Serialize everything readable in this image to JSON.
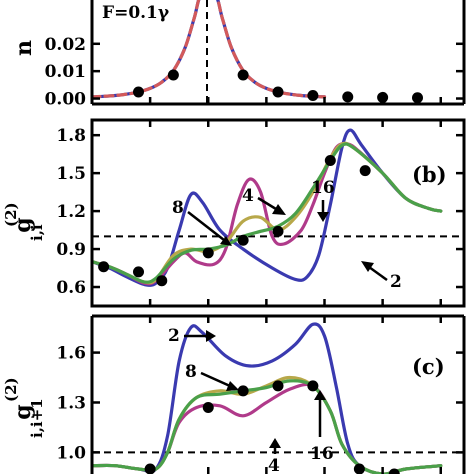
{
  "chart_data": [
    {
      "panel": "a",
      "type": "line",
      "ylabel": "n",
      "annotation": "F=0.1γ",
      "ylim": [
        -0.002,
        0.036
      ],
      "yticks": [
        "0.00",
        "0.01",
        "0.02"
      ],
      "ytick_values": [
        0.0,
        0.01,
        0.02
      ],
      "reference_line": {
        "orientation": "vertical",
        "style": "dashed"
      },
      "series": [
        {
          "color": "#3a3ab0",
          "style": "solid",
          "values": [
            [
              -1.0,
              0.0006
            ],
            [
              -0.9,
              0.0008
            ],
            [
              -0.8,
              0.0011
            ],
            [
              -0.7,
              0.0016
            ],
            [
              -0.6,
              0.0024
            ],
            [
              -0.5,
              0.0037
            ],
            [
              -0.4,
              0.006
            ],
            [
              -0.3,
              0.0102
            ],
            [
              -0.2,
              0.0185
            ],
            [
              -0.12,
              0.0295
            ],
            [
              -0.06,
              0.038
            ],
            [
              0.06,
              0.038
            ],
            [
              0.12,
              0.0295
            ],
            [
              0.2,
              0.0185
            ],
            [
              0.3,
              0.0102
            ],
            [
              0.4,
              0.006
            ],
            [
              0.5,
              0.0037
            ],
            [
              0.6,
              0.0024
            ],
            [
              0.7,
              0.0016
            ],
            [
              0.8,
              0.0011
            ],
            [
              0.9,
              0.0008
            ],
            [
              1.0,
              0.0006
            ]
          ]
        },
        {
          "color": "#d35a5a",
          "style": "dashed",
          "values": [
            [
              -1.0,
              0.0006
            ],
            [
              -0.9,
              0.0008
            ],
            [
              -0.8,
              0.0011
            ],
            [
              -0.7,
              0.0016
            ],
            [
              -0.6,
              0.0024
            ],
            [
              -0.5,
              0.0037
            ],
            [
              -0.4,
              0.006
            ],
            [
              -0.3,
              0.0102
            ],
            [
              -0.2,
              0.0185
            ],
            [
              -0.12,
              0.0295
            ],
            [
              -0.06,
              0.038
            ],
            [
              0.06,
              0.038
            ],
            [
              0.12,
              0.0295
            ],
            [
              0.2,
              0.0185
            ],
            [
              0.3,
              0.0102
            ],
            [
              0.4,
              0.006
            ],
            [
              0.5,
              0.0037
            ],
            [
              0.6,
              0.0024
            ],
            [
              0.7,
              0.0016
            ],
            [
              0.8,
              0.0011
            ],
            [
              0.9,
              0.0008
            ],
            [
              1.0,
              0.0006
            ]
          ]
        },
        {
          "color": "#000000",
          "style": "markers",
          "values": [
            [
              -0.6,
              0.0024
            ],
            [
              -0.3,
              0.0086
            ],
            [
              0.3,
              0.0086
            ],
            [
              0.6,
              0.0024
            ],
            [
              0.9,
              0.0011
            ],
            [
              1.2,
              0.0006
            ],
            [
              1.5,
              0.0004
            ],
            [
              1.8,
              0.0003
            ]
          ]
        }
      ]
    },
    {
      "panel": "b",
      "type": "line",
      "panel_label": "(b)",
      "ylabel": "g",
      "ylabel_subscript": "i,i",
      "ylabel_superscript": "(2)",
      "ylim": [
        0.45,
        1.92
      ],
      "yticks": [
        "0.6",
        "0.9",
        "1.2",
        "1.5",
        "1.8"
      ],
      "ytick_values": [
        0.6,
        0.9,
        1.2,
        1.5,
        1.8
      ],
      "reference_line": {
        "orientation": "horizontal",
        "style": "dashed",
        "y": 1.0
      },
      "curve_labels": [
        "2",
        "4",
        "8",
        "16"
      ],
      "series": [
        {
          "name": "2",
          "color": "#3a3ab0",
          "values": [
            [
              -1.0,
              0.8
            ],
            [
              -0.85,
              0.75
            ],
            [
              -0.7,
              0.68
            ],
            [
              -0.55,
              0.62
            ],
            [
              -0.45,
              0.63
            ],
            [
              -0.35,
              0.75
            ],
            [
              -0.25,
              1.05
            ],
            [
              -0.15,
              1.33
            ],
            [
              -0.05,
              1.27
            ],
            [
              0.1,
              1.05
            ],
            [
              0.3,
              0.9
            ],
            [
              0.55,
              0.75
            ],
            [
              0.75,
              0.66
            ],
            [
              0.85,
              0.68
            ],
            [
              0.95,
              0.85
            ],
            [
              1.05,
              1.25
            ],
            [
              1.15,
              1.7
            ],
            [
              1.22,
              1.84
            ],
            [
              1.32,
              1.72
            ],
            [
              1.5,
              1.5
            ],
            [
              1.7,
              1.3
            ],
            [
              1.9,
              1.22
            ],
            [
              2.0,
              1.2
            ]
          ]
        },
        {
          "name": "4",
          "color": "#b03a8a",
          "values": [
            [
              -1.0,
              0.8
            ],
            [
              -0.85,
              0.76
            ],
            [
              -0.7,
              0.7
            ],
            [
              -0.55,
              0.63
            ],
            [
              -0.45,
              0.65
            ],
            [
              -0.3,
              0.8
            ],
            [
              -0.2,
              0.87
            ],
            [
              -0.1,
              0.8
            ],
            [
              0.05,
              0.78
            ],
            [
              0.15,
              0.9
            ],
            [
              0.25,
              1.25
            ],
            [
              0.35,
              1.45
            ],
            [
              0.45,
              1.35
            ],
            [
              0.55,
              1.0
            ],
            [
              0.65,
              0.94
            ],
            [
              0.8,
              1.05
            ],
            [
              0.9,
              1.25
            ],
            [
              1.0,
              1.5
            ],
            [
              1.1,
              1.7
            ],
            [
              1.2,
              1.73
            ],
            [
              1.3,
              1.67
            ],
            [
              1.5,
              1.5
            ],
            [
              1.7,
              1.3
            ],
            [
              1.9,
              1.22
            ],
            [
              2.0,
              1.2
            ]
          ]
        },
        {
          "name": "8",
          "color": "#b8a84a",
          "values": [
            [
              -1.0,
              0.8
            ],
            [
              -0.85,
              0.76
            ],
            [
              -0.7,
              0.7
            ],
            [
              -0.55,
              0.64
            ],
            [
              -0.45,
              0.66
            ],
            [
              -0.3,
              0.85
            ],
            [
              -0.15,
              0.9
            ],
            [
              0.0,
              0.88
            ],
            [
              0.15,
              0.95
            ],
            [
              0.3,
              1.12
            ],
            [
              0.45,
              1.15
            ],
            [
              0.6,
              1.05
            ],
            [
              0.75,
              1.15
            ],
            [
              0.9,
              1.35
            ],
            [
              1.05,
              1.62
            ],
            [
              1.15,
              1.73
            ],
            [
              1.25,
              1.7
            ],
            [
              1.5,
              1.5
            ],
            [
              1.7,
              1.3
            ],
            [
              1.9,
              1.22
            ],
            [
              2.0,
              1.2
            ]
          ]
        },
        {
          "name": "16",
          "color": "#4aa04a",
          "values": [
            [
              -1.0,
              0.8
            ],
            [
              -0.85,
              0.76
            ],
            [
              -0.7,
              0.7
            ],
            [
              -0.55,
              0.64
            ],
            [
              -0.45,
              0.67
            ],
            [
              -0.3,
              0.82
            ],
            [
              -0.15,
              0.89
            ],
            [
              0.0,
              0.9
            ],
            [
              0.15,
              0.93
            ],
            [
              0.3,
              1.0
            ],
            [
              0.45,
              1.04
            ],
            [
              0.6,
              1.08
            ],
            [
              0.75,
              1.18
            ],
            [
              0.9,
              1.38
            ],
            [
              1.05,
              1.6
            ],
            [
              1.15,
              1.72
            ],
            [
              1.25,
              1.7
            ],
            [
              1.5,
              1.5
            ],
            [
              1.7,
              1.3
            ],
            [
              1.9,
              1.22
            ],
            [
              2.0,
              1.2
            ]
          ]
        },
        {
          "name": "",
          "color": "#000000",
          "style": "markers",
          "values": [
            [
              -0.9,
              0.76
            ],
            [
              -0.6,
              0.72
            ],
            [
              -0.4,
              0.65
            ],
            [
              0.0,
              0.87
            ],
            [
              0.3,
              0.97
            ],
            [
              0.6,
              1.04
            ],
            [
              1.05,
              1.6
            ],
            [
              1.35,
              1.52
            ]
          ]
        }
      ]
    },
    {
      "panel": "c",
      "type": "line",
      "panel_label": "(c)",
      "ylabel": "g",
      "ylabel_subscript": "i,i+1",
      "ylabel_superscript": "(2)",
      "ylim": [
        0.87,
        1.82
      ],
      "yticks": [
        "1.0",
        "1.3",
        "1.6"
      ],
      "ytick_values": [
        1.0,
        1.3,
        1.6
      ],
      "reference_line": {
        "orientation": "horizontal",
        "style": "dashed",
        "y": 1.0
      },
      "curve_labels": [
        "2",
        "8",
        "16",
        "4"
      ],
      "series": [
        {
          "name": "2",
          "color": "#3a3ab0",
          "values": [
            [
              -1.0,
              0.92
            ],
            [
              -0.8,
              0.92
            ],
            [
              -0.6,
              0.9
            ],
            [
              -0.45,
              0.9
            ],
            [
              -0.35,
              1.1
            ],
            [
              -0.25,
              1.55
            ],
            [
              -0.15,
              1.75
            ],
            [
              -0.05,
              1.72
            ],
            [
              0.15,
              1.58
            ],
            [
              0.35,
              1.52
            ],
            [
              0.55,
              1.55
            ],
            [
              0.75,
              1.65
            ],
            [
              0.9,
              1.77
            ],
            [
              1.0,
              1.7
            ],
            [
              1.1,
              1.4
            ],
            [
              1.2,
              1.05
            ],
            [
              1.3,
              0.92
            ],
            [
              1.5,
              0.87
            ],
            [
              1.7,
              0.9
            ],
            [
              2.0,
              0.92
            ]
          ]
        },
        {
          "name": "4",
          "color": "#b03a8a",
          "values": [
            [
              -1.0,
              0.92
            ],
            [
              -0.8,
              0.92
            ],
            [
              -0.6,
              0.9
            ],
            [
              -0.45,
              0.9
            ],
            [
              -0.35,
              1.0
            ],
            [
              -0.25,
              1.18
            ],
            [
              -0.1,
              1.27
            ],
            [
              0.1,
              1.28
            ],
            [
              0.3,
              1.22
            ],
            [
              0.5,
              1.3
            ],
            [
              0.7,
              1.38
            ],
            [
              0.9,
              1.4
            ],
            [
              1.05,
              1.25
            ],
            [
              1.15,
              1.05
            ],
            [
              1.3,
              0.92
            ],
            [
              1.5,
              0.87
            ],
            [
              1.7,
              0.9
            ],
            [
              2.0,
              0.92
            ]
          ]
        },
        {
          "name": "8",
          "color": "#b8a84a",
          "values": [
            [
              -1.0,
              0.92
            ],
            [
              -0.8,
              0.92
            ],
            [
              -0.6,
              0.9
            ],
            [
              -0.45,
              0.9
            ],
            [
              -0.35,
              1.0
            ],
            [
              -0.25,
              1.2
            ],
            [
              -0.1,
              1.33
            ],
            [
              0.1,
              1.37
            ],
            [
              0.3,
              1.35
            ],
            [
              0.5,
              1.4
            ],
            [
              0.7,
              1.45
            ],
            [
              0.9,
              1.4
            ],
            [
              1.05,
              1.25
            ],
            [
              1.15,
              1.05
            ],
            [
              1.3,
              0.92
            ],
            [
              1.5,
              0.87
            ],
            [
              1.7,
              0.9
            ],
            [
              2.0,
              0.92
            ]
          ]
        },
        {
          "name": "16",
          "color": "#4aa04a",
          "values": [
            [
              -1.0,
              0.92
            ],
            [
              -0.8,
              0.92
            ],
            [
              -0.6,
              0.9
            ],
            [
              -0.45,
              0.9
            ],
            [
              -0.35,
              1.0
            ],
            [
              -0.25,
              1.2
            ],
            [
              -0.1,
              1.33
            ],
            [
              0.1,
              1.35
            ],
            [
              0.3,
              1.37
            ],
            [
              0.5,
              1.39
            ],
            [
              0.7,
              1.43
            ],
            [
              0.9,
              1.4
            ],
            [
              1.05,
              1.25
            ],
            [
              1.15,
              1.05
            ],
            [
              1.3,
              0.92
            ],
            [
              1.5,
              0.87
            ],
            [
              1.7,
              0.9
            ],
            [
              2.0,
              0.92
            ]
          ]
        },
        {
          "name": "",
          "color": "#000000",
          "style": "markers",
          "values": [
            [
              -0.5,
              0.9
            ],
            [
              0.0,
              1.27
            ],
            [
              0.3,
              1.37
            ],
            [
              0.6,
              1.4
            ],
            [
              0.9,
              1.4
            ],
            [
              1.3,
              0.9
            ],
            [
              1.6,
              0.87
            ]
          ]
        }
      ]
    }
  ]
}
